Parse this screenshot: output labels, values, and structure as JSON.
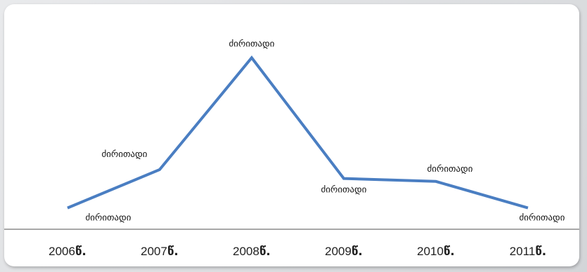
{
  "chart_data": {
    "type": "line",
    "categories": [
      "2006",
      "2007",
      "2008",
      "2009",
      "2010",
      "2011"
    ],
    "category_suffix": "წ.",
    "series": [
      {
        "values": [
          0.7,
          2.0,
          5.8,
          1.7,
          1.6,
          0.7
        ],
        "data_labels": [
          "ძირითადი",
          "ძირითადი",
          "ძირითადი",
          "ძირითადი",
          "ძირითადი",
          "ძირითადი"
        ],
        "color": "#4a7ec2"
      }
    ],
    "title": "",
    "xlabel": "",
    "ylabel": "",
    "ylim": [
      0,
      6
    ],
    "grid": false,
    "legend": "none",
    "axis_color": "#8a8a8a"
  }
}
